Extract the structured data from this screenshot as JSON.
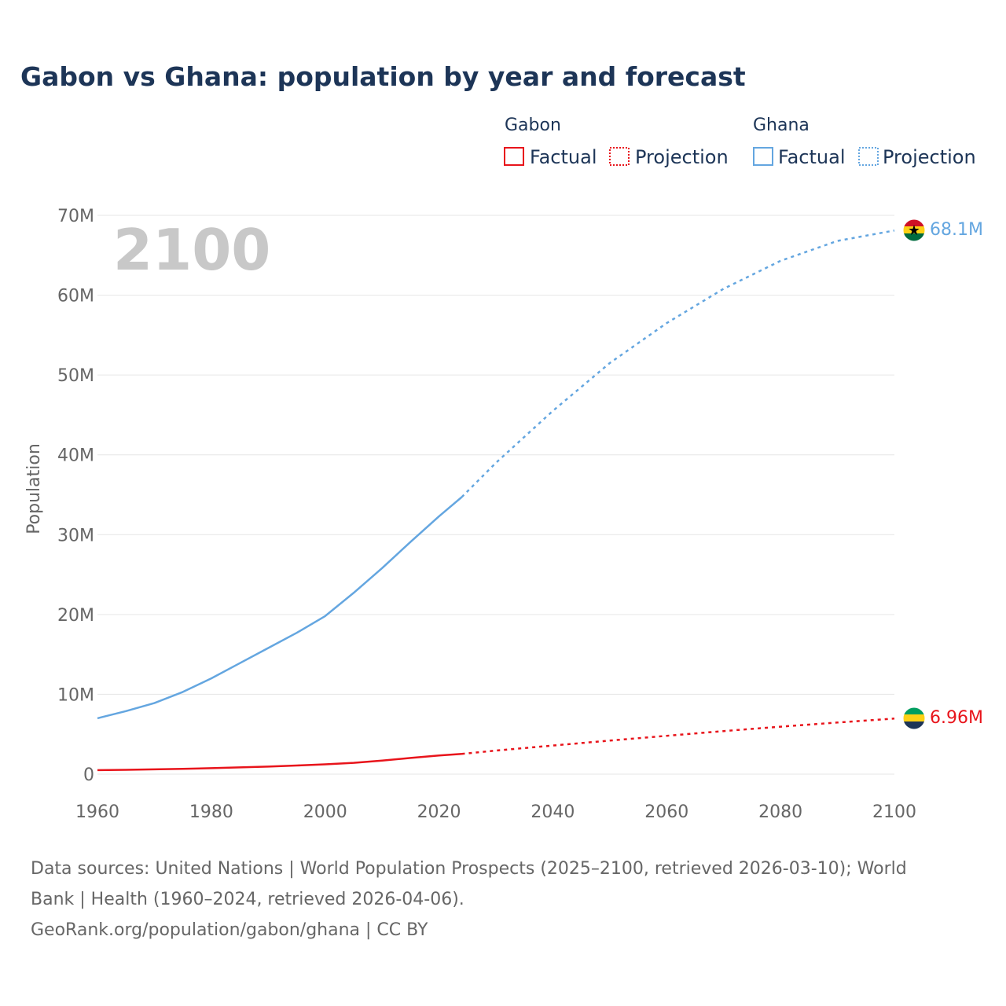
{
  "chart_data": {
    "type": "line",
    "title": "Gabon vs Ghana: population by year and forecast",
    "ylabel": "Population",
    "xlabel": "",
    "xlim": [
      1960,
      2100
    ],
    "ylim": [
      0,
      70000000
    ],
    "x_ticks": [
      "1960",
      "1980",
      "2000",
      "2020",
      "2040",
      "2060",
      "2080",
      "2100"
    ],
    "y_ticks": [
      "0",
      "10M",
      "20M",
      "30M",
      "40M",
      "50M",
      "60M",
      "70M"
    ],
    "current_year_label": "2100",
    "legend": {
      "groups": [
        {
          "name": "Gabon",
          "factual_label": "Factual",
          "projection_label": "Projection",
          "color": "#e8141b"
        },
        {
          "name": "Ghana",
          "factual_label": "Factual",
          "projection_label": "Projection",
          "color": "#64a6e0"
        }
      ]
    },
    "series": [
      {
        "name": "Gabon",
        "color": "#e8141b",
        "end_label": "6.96M",
        "factual": {
          "x": [
            1960,
            1965,
            1970,
            1975,
            1980,
            1985,
            1990,
            1995,
            2000,
            2005,
            2010,
            2015,
            2020,
            2024
          ],
          "y": [
            500000,
            540000,
            600000,
            670000,
            750000,
            850000,
            950000,
            1080000,
            1230000,
            1420000,
            1700000,
            2030000,
            2330000,
            2540000
          ]
        },
        "projection": {
          "x": [
            2024,
            2030,
            2040,
            2050,
            2060,
            2070,
            2080,
            2090,
            2100
          ],
          "y": [
            2540000,
            2950000,
            3580000,
            4200000,
            4800000,
            5400000,
            5950000,
            6470000,
            6960000
          ]
        }
      },
      {
        "name": "Ghana",
        "color": "#64a6e0",
        "end_label": "68.1M",
        "factual": {
          "x": [
            1960,
            1965,
            1970,
            1975,
            1980,
            1985,
            1990,
            1995,
            2000,
            2005,
            2010,
            2015,
            2020,
            2024
          ],
          "y": [
            7000000,
            7900000,
            8900000,
            10300000,
            12000000,
            13900000,
            15800000,
            17700000,
            19800000,
            22700000,
            25800000,
            29100000,
            32300000,
            34700000
          ]
        },
        "projection": {
          "x": [
            2024,
            2030,
            2040,
            2050,
            2060,
            2070,
            2080,
            2090,
            2100
          ],
          "y": [
            34700000,
            39000000,
            45500000,
            51500000,
            56500000,
            60800000,
            64300000,
            66800000,
            68100000
          ]
        }
      }
    ]
  },
  "footer": {
    "source_line1": "Data sources: United Nations | World Population Prospects (2025–2100, retrieved 2026-03-10); World",
    "source_line2": "Bank | Health (1960–2024, retrieved 2026-04-06).",
    "source_line3": "GeoRank.org/population/gabon/ghana | CC BY"
  },
  "colors": {
    "title": "#1d3557",
    "axis_text": "#666666",
    "grid": "#e6e6e6",
    "year_watermark": "#c8c8c8"
  }
}
